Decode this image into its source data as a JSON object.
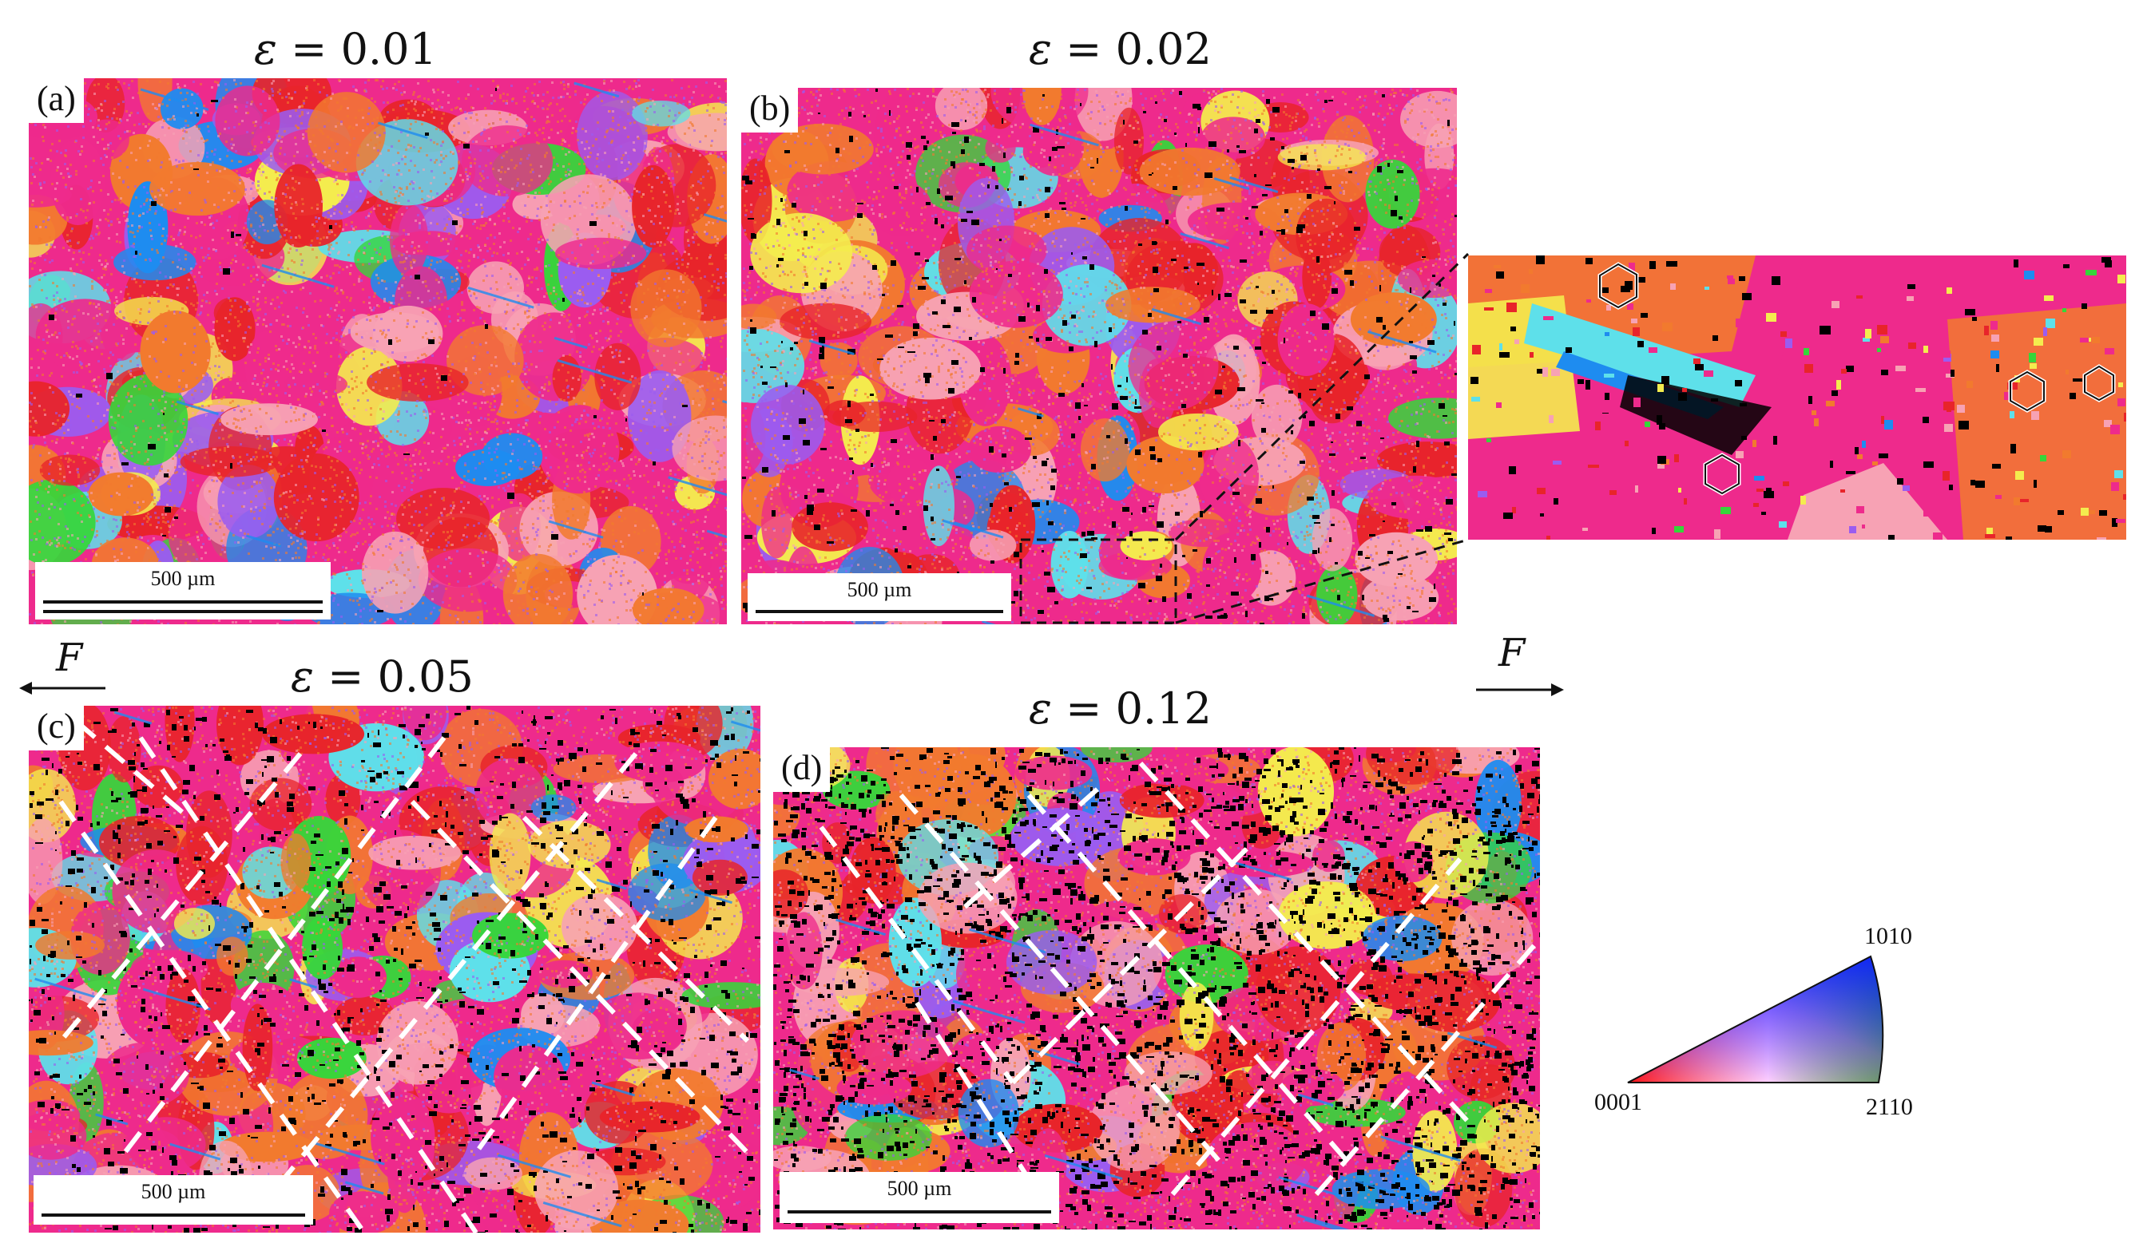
{
  "panels": {
    "a": {
      "label": "(a)",
      "strain_symbol": "ε",
      "strain_value": "= 0.01",
      "scale": "500 µm"
    },
    "b": {
      "label": "(b)",
      "strain_symbol": "ε",
      "strain_value": "= 0.02",
      "scale": "500 µm"
    },
    "c": {
      "label": "(c)",
      "strain_symbol": "ε",
      "strain_value": "= 0.05",
      "scale": "500 µm"
    },
    "d": {
      "label": "(d)",
      "strain_symbol": "ε",
      "strain_value": "= 0.12",
      "scale": "500 µm"
    }
  },
  "force": {
    "left": "F",
    "right": "F"
  },
  "ipf_legend": {
    "top": "1010",
    "left": "0001",
    "right": "2110"
  },
  "colors": {
    "basal": "#e8242a",
    "magenta": "#ee2a8c",
    "orange": "#f27a2e",
    "pink": "#f7a2b4",
    "blue": "#1e8cf0",
    "purple": "#9b5cf0",
    "green": "#36d63a",
    "yellow": "#f4ec4e",
    "cyan": "#5ee0ea",
    "black_unindexed": "#000000",
    "band_dash": "#ffffff"
  }
}
